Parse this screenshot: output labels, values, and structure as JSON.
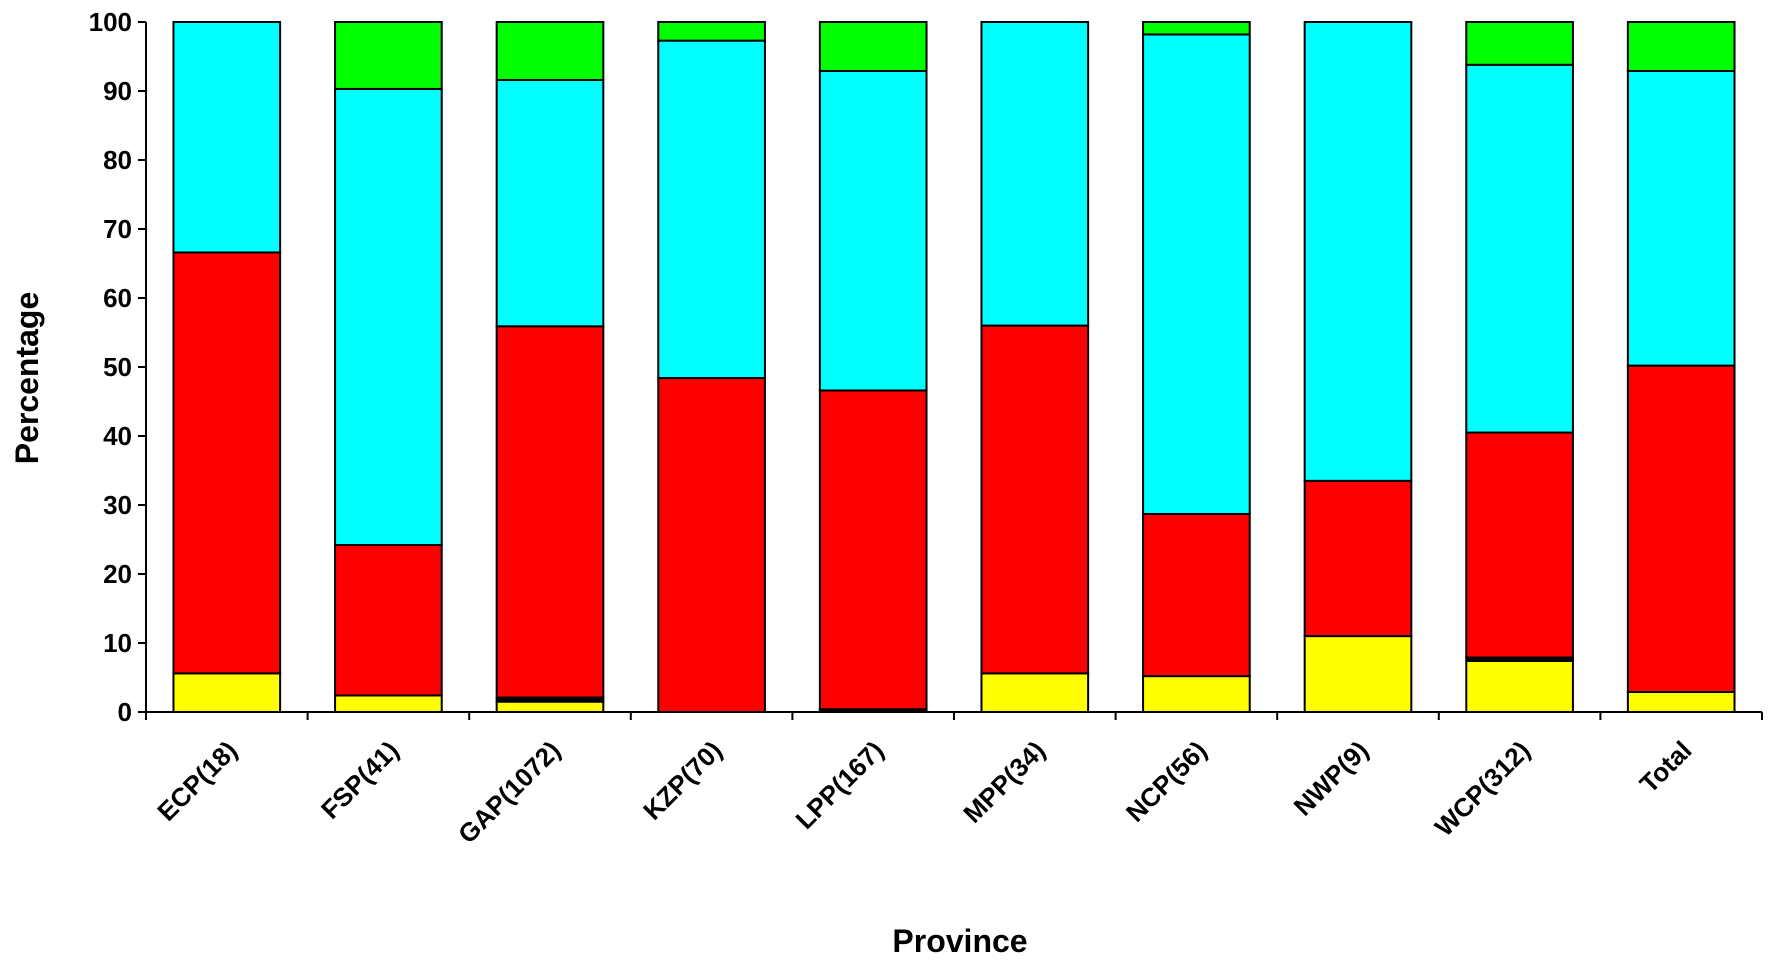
{
  "chart_data": {
    "type": "bar",
    "stacked": true,
    "title": "",
    "xlabel": "Province",
    "ylabel": "Percentage",
    "ylim": [
      0,
      100
    ],
    "yticks": [
      0,
      10,
      20,
      30,
      40,
      50,
      60,
      70,
      80,
      90,
      100
    ],
    "grid": false,
    "legend": "none",
    "categories": [
      "ECP(18)",
      "FSP(41)",
      "GAP(1072)",
      "KZP(70)",
      "LPP(167)",
      "MPP(34)",
      "NCP(56)",
      "NWP(9)",
      "WCP(312)",
      "Total"
    ],
    "series": [
      {
        "color": "#ffff00",
        "values": [
          5.6,
          2.4,
          1.5,
          0,
          0,
          5.6,
          5.2,
          11.0,
          7.4,
          2.9
        ]
      },
      {
        "color": "#000000",
        "values": [
          0,
          0,
          0.6,
          0,
          0.4,
          0,
          0,
          0,
          0.5,
          0
        ]
      },
      {
        "color": "#ff0000",
        "values": [
          61.0,
          21.8,
          53.8,
          48.4,
          46.2,
          50.4,
          23.5,
          22.5,
          32.6,
          47.3
        ]
      },
      {
        "color": "#00ffff",
        "values": [
          33.4,
          66.1,
          35.7,
          48.9,
          46.3,
          44.0,
          69.5,
          66.5,
          53.3,
          42.7
        ]
      },
      {
        "color": "#00ff00",
        "values": [
          0,
          9.7,
          8.4,
          2.7,
          7.1,
          0,
          1.8,
          0,
          6.2,
          7.1
        ]
      }
    ]
  }
}
